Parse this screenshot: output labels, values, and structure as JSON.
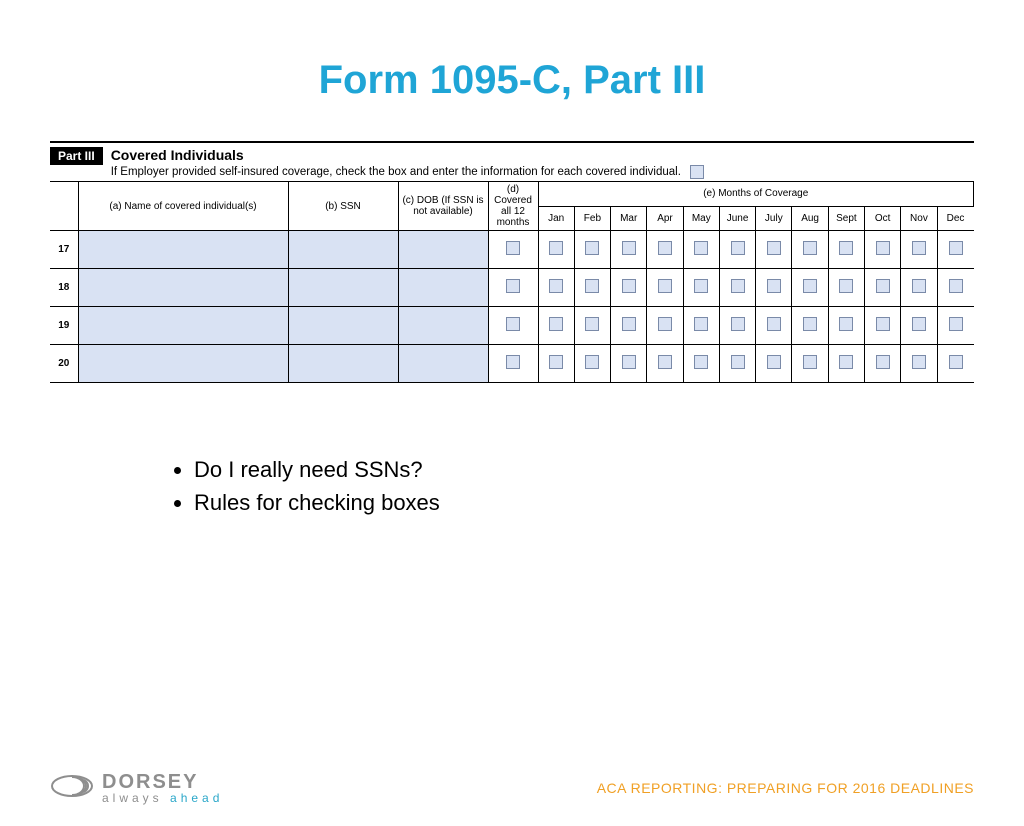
{
  "title": "Form 1095-C, Part III",
  "form": {
    "part_badge": "Part III",
    "section_title": "Covered Individuals",
    "section_sub": "If Employer provided self-insured coverage, check the box and enter the information for each covered individual.",
    "cols": {
      "a": "(a) Name of covered individual(s)",
      "b": "(b) SSN",
      "c": "(c) DOB (If SSN is not available)",
      "d": "(d) Covered all 12 months",
      "e": "(e) Months of Coverage"
    },
    "months": [
      "Jan",
      "Feb",
      "Mar",
      "Apr",
      "May",
      "June",
      "July",
      "Aug",
      "Sept",
      "Oct",
      "Nov",
      "Dec"
    ],
    "rows": [
      "17",
      "18",
      "19",
      "20"
    ],
    "colors": {
      "shade": "#d9e2f3",
      "checkbox_border": "#7a8aa8",
      "rule": "#000000"
    }
  },
  "bullets": [
    "Do I really need SSNs?",
    "Rules for checking boxes"
  ],
  "footer": {
    "logo_name": "DORSEY",
    "logo_tag_a": "always ",
    "logo_tag_b": "ahead",
    "text": "ACA REPORTING: PREPARING FOR 2016 DEADLINES"
  },
  "style": {
    "title_color": "#1fa5d6",
    "footer_text_color": "#f0a025",
    "logo_gray": "#8e8e8e",
    "logo_accent": "#2aa7c9"
  }
}
